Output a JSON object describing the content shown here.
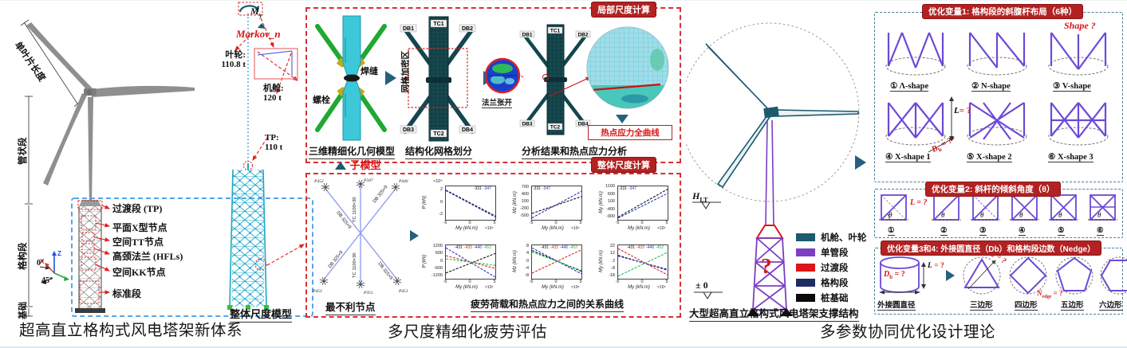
{
  "page": {
    "title_left": "超高直立格构式风电塔架新体系",
    "title_mid": "多尺度精细化疲劳评估",
    "title_right": "多参数协同优化设计理论"
  },
  "left": {
    "dim_blade": "单叶片长度",
    "dim_tubular": "管状段",
    "dim_lattice": "格构段",
    "dim_foundation": "基础",
    "axis_z": "Z",
    "axis_x": "X",
    "deg0": "0°",
    "deg45": "45°",
    "annotations": [
      "过渡段 (TP)",
      "平面X型节点",
      "空间TT节点",
      "高颈法兰 (HFLs)",
      "空间KK节点",
      "标准段"
    ]
  },
  "mid": {
    "my_base": "M",
    "my_sub": "y",
    "markov": "Markov_n",
    "rotor_label": "叶轮:",
    "rotor_mass": "110.8 t",
    "nacelle_label": "机舱:",
    "nacelle_mass": "120 t",
    "tp_label": "TP:",
    "tp_mass": "110 t",
    "global_caption": "整体尺度模型",
    "badge_local": "局部尺度计算",
    "badge_global": "整体尺度计算",
    "weld": "焊缝",
    "bolt": "螺栓",
    "caption_geo": "三维精细化几何模型",
    "mesh_zone": "网格加密区",
    "caption_mesh": "结构化网格划分",
    "chips": [
      "DB1",
      "TC1",
      "DB2",
      "DB3",
      "TC2",
      "DB4"
    ],
    "flange_open": "法兰张开",
    "hotspot_box": "热点应力全曲线",
    "caption_analysis": "分析结果和热点应力分析",
    "submodel": "子模型",
    "node_caption": "最不利节点",
    "members": [
      "DB 325×9",
      "TC 1100×30",
      "DB 325×9",
      "DB 325×9",
      "TC 1100×30",
      "DB 325×9"
    ],
    "node_labels": [
      "P452",
      "P347",
      "P446",
      "P453",
      "P351",
      "P451"
    ],
    "charts_caption": "疲劳荷载和热点应力之间的关系曲线"
  },
  "right": {
    "h_base": "H",
    "h_sub": "LT",
    "pm0": "± 0",
    "question": "?",
    "legend": [
      {
        "label": "机舱、叶轮",
        "color": "#1c5a6e"
      },
      {
        "label": "单管段",
        "color": "#7b3fc4"
      },
      {
        "label": "过渡段",
        "color": "#df1417"
      },
      {
        "label": "格构段",
        "color": "#1c2d66"
      },
      {
        "label": "桩基础",
        "color": "#0a0a0a"
      }
    ],
    "caption_structure": "大型超高直立格构式风电塔架支撑结构",
    "var1_badge": "优化变量1: 格构段的斜腹杆布局（6种）",
    "shape_q": "Shape ?",
    "var1_items": [
      "① Λ-shape",
      "② N-shape",
      "③ V-shape",
      "④ X-shape 1",
      "⑤ X-shape 2",
      "⑥ X-shape 3"
    ],
    "var2_badge": "优化变量2: 斜杆的倾斜角度（θ）",
    "var2_items": [
      "①",
      "②",
      "③",
      "④",
      "⑤",
      "⑥"
    ],
    "theta": "θ",
    "var34_badge": "优化变量3和4: 外接圆直径（Db）和格构段边数（Nedge）",
    "var34_items": [
      "外接圆直径",
      "三边形",
      "四边形",
      "五边形",
      "六边形"
    ],
    "l_base": "L",
    "eq_q": "= ?",
    "eq_q_sp": " = ?",
    "b_base": "B",
    "b_sub": "b",
    "d_base": "D",
    "d_sub": "b",
    "n_base": "N",
    "n_sub": "edge"
  },
  "chart_data": [
    {
      "type": "line",
      "title": "",
      "xlabel": "My (kN.m)",
      "xticks": [
        -5,
        0,
        5
      ],
      "xexp": "×10⁵",
      "ylabel": "P (kN)",
      "yexp": "×10⁴",
      "yticks": [
        2,
        0,
        -2
      ],
      "ylim": [
        -2.7,
        2.7
      ],
      "legend": [
        "-331",
        "-347"
      ],
      "colors": [
        "#111111",
        "#2233cc"
      ],
      "series": [
        [
          2.1,
          -2.1
        ],
        [
          2.0,
          -2.25
        ]
      ],
      "grid": false,
      "legend_pos": "top-right"
    },
    {
      "type": "line",
      "title": "",
      "xlabel": "My (kN.m)",
      "xticks": [
        -5,
        0,
        5
      ],
      "xexp": "×10⁵",
      "ylabel": "Mz (kN.m)",
      "yexp": "",
      "yticks": [
        700,
        400,
        100,
        -200,
        -500
      ],
      "ylim": [
        -620,
        790
      ],
      "legend": [
        "-331",
        "-347"
      ],
      "colors": [
        "#111111",
        "#2233cc"
      ],
      "series": [
        [
          -350,
          360
        ],
        [
          -540,
          580
        ]
      ],
      "grid": false,
      "legend_pos": "top-left"
    },
    {
      "type": "line",
      "title": "",
      "xlabel": "My (kN.m)",
      "xticks": [
        -5,
        0,
        5
      ],
      "xexp": "×10⁵",
      "ylabel": "My (kN.m)",
      "yexp": "",
      "yticks": [
        1100,
        600,
        100,
        -400,
        -900
      ],
      "ylim": [
        -1010,
        1190
      ],
      "legend": [
        "-331",
        "-347"
      ],
      "colors": [
        "#111111",
        "#2233cc"
      ],
      "series": [
        [
          -830,
          1000
        ],
        [
          -900,
          730
        ]
      ],
      "grid": false,
      "legend_pos": "top-left"
    },
    {
      "type": "line",
      "title": "",
      "xlabel": "My (kN.m)",
      "xticks": [
        -5,
        0,
        5
      ],
      "xexp": "×10⁵",
      "ylabel": "P (kN)",
      "yexp": "",
      "yticks": [
        1200,
        600,
        0,
        -600,
        -1200
      ],
      "ylim": [
        -1360,
        1360
      ],
      "legend": [
        "-431",
        "-433",
        "-446",
        "-452"
      ],
      "colors": [
        "#111111",
        "#dd2222",
        "#2233cc",
        "#22bb44"
      ],
      "series": [
        [
          -900,
          700
        ],
        [
          510,
          -520
        ],
        [
          1150,
          -1230
        ],
        [
          260,
          -270
        ]
      ],
      "grid": false,
      "legend_pos": "top-right"
    },
    {
      "type": "line",
      "title": "",
      "xlabel": "My (kN.m)",
      "xticks": [
        -5,
        0,
        5
      ],
      "xexp": "×10⁵",
      "ylabel": "Mz (kN.m)",
      "yexp": "",
      "yticks": [
        8,
        4,
        0,
        -4,
        -8
      ],
      "ylim": [
        -9,
        9
      ],
      "legend": [
        "-431",
        "-433",
        "-446",
        "-452"
      ],
      "colors": [
        "#111111",
        "#dd2222",
        "#2233cc",
        "#22bb44"
      ],
      "series": [
        [
          6.2,
          -5.0
        ],
        [
          -6.0,
          6.6
        ],
        [
          7.6,
          -6.4
        ],
        [
          5.4,
          -4.6
        ]
      ],
      "grid": false,
      "legend_pos": "top-right"
    },
    {
      "type": "line",
      "title": "",
      "xlabel": "My (kN.m)",
      "xticks": [
        -5,
        0,
        5
      ],
      "xexp": "×10⁵",
      "ylabel": "My (kN.m)",
      "yexp": "",
      "yticks": [
        22,
        12,
        2,
        -8,
        -18
      ],
      "ylim": [
        -20.5,
        24.5
      ],
      "legend": [
        "-431",
        "-433",
        "-446",
        "-452"
      ],
      "colors": [
        "#111111",
        "#dd2222",
        "#2233cc",
        "#22bb44"
      ],
      "series": [
        [
          11,
          -9
        ],
        [
          20,
          -15.5
        ],
        [
          10,
          -8
        ],
        [
          -17,
          15
        ]
      ],
      "grid": false,
      "legend_pos": "top-right"
    }
  ]
}
